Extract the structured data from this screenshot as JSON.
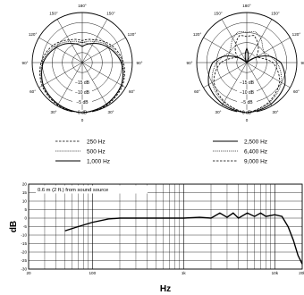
{
  "chart_data": [
    {
      "type": "polar",
      "angle_labels": [
        "180°",
        "150°",
        "150°",
        "120°",
        "120°",
        "90°",
        "90°",
        "60°",
        "60°",
        "30°",
        "30°",
        "0"
      ],
      "ring_labels": [
        "−15 dB",
        "−10 dB",
        "−5 dB",
        "0 dB"
      ],
      "rlim": [
        -25,
        0
      ],
      "series": [
        {
          "name": "250 Hz",
          "style": "dashed",
          "values_deg": [
            0,
            30,
            60,
            90,
            120,
            150,
            180
          ],
          "values_db": [
            0,
            -0.5,
            -1.8,
            -4.4,
            -8,
            -12,
            -14
          ]
        },
        {
          "name": "500 Hz",
          "style": "dotted",
          "values_deg": [
            0,
            30,
            60,
            90,
            120,
            150,
            180
          ],
          "values_db": [
            0,
            -0.8,
            -2.2,
            -5,
            -9,
            -13,
            -15
          ]
        },
        {
          "name": "1,000 Hz",
          "style": "solid",
          "values_deg": [
            0,
            30,
            60,
            90,
            120,
            150,
            180
          ],
          "values_db": [
            0,
            -1,
            -2.5,
            -5.5,
            -10,
            -14,
            -17
          ]
        }
      ],
      "legend": [
        "250 Hz",
        "500 Hz",
        "1,000 Hz"
      ]
    },
    {
      "type": "polar",
      "angle_labels": [
        "180°",
        "150°",
        "150°",
        "120°",
        "120°",
        "90°",
        "90°",
        "60°",
        "60°",
        "30°",
        "30°",
        "0"
      ],
      "ring_labels": [
        "−15 dB",
        "−10 dB",
        "−5 dB",
        "0 dB"
      ],
      "rlim": [
        -25,
        0
      ],
      "series": [
        {
          "name": "2,500 Hz",
          "style": "solid",
          "values_deg": [
            0,
            30,
            60,
            90,
            105,
            120,
            135,
            150,
            165,
            180
          ],
          "values_db": [
            0,
            -1,
            -3,
            -8,
            -13,
            -20,
            -25,
            -25,
            -22,
            -18
          ]
        },
        {
          "name": "6,400 Hz",
          "style": "dotted",
          "values_deg": [
            0,
            30,
            60,
            90,
            105,
            120,
            135,
            150,
            165,
            180
          ],
          "values_db": [
            0,
            -2,
            -5,
            -10,
            -13,
            -15,
            -14,
            -11,
            -9,
            -10
          ]
        },
        {
          "name": "9,000 Hz",
          "style": "dashed",
          "values_deg": [
            0,
            30,
            60,
            90,
            105,
            120,
            135,
            150,
            165,
            180
          ],
          "values_db": [
            0,
            -2.5,
            -6,
            -12,
            -17,
            -20,
            -17,
            -14,
            -11,
            -12
          ]
        }
      ],
      "legend": [
        "2,500 Hz",
        "6,400 Hz",
        "9,000 Hz"
      ]
    },
    {
      "type": "line",
      "xscale": "log",
      "xlim": [
        20,
        20000
      ],
      "ylim": [
        -30,
        20
      ],
      "ylabel": "dB",
      "xlabel": "Hz",
      "yticks": [
        20,
        15,
        10,
        5,
        0,
        -5,
        -10,
        -15,
        -20,
        -25,
        -30
      ],
      "xticks": [
        "20",
        "100",
        "1k",
        "10k",
        "20k"
      ],
      "annotation": "0.6 m (2 ft.) from sound source",
      "series": [
        {
          "x": [
            50,
            70,
            100,
            150,
            200,
            300,
            500,
            700,
            1000,
            1500,
            2000,
            2500,
            3000,
            3500,
            4000,
            5000,
            6000,
            7000,
            8000,
            10000,
            12000,
            14000,
            16000,
            18000,
            20000
          ],
          "values": [
            -7.5,
            -5,
            -2.5,
            -0.5,
            0,
            0,
            0,
            0,
            0,
            0.5,
            0,
            3,
            0.5,
            3,
            0,
            3,
            1,
            3,
            1,
            2,
            1,
            -5,
            -13,
            -22,
            -27
          ]
        }
      ]
    }
  ]
}
